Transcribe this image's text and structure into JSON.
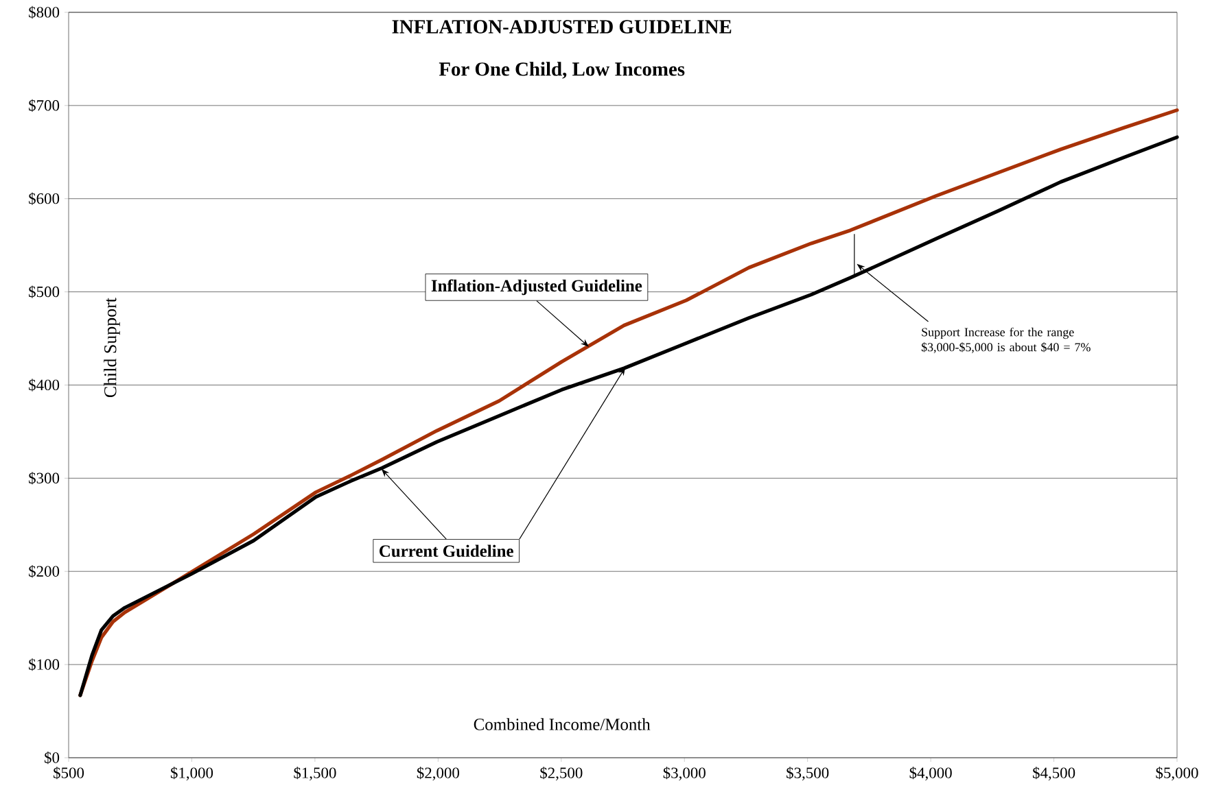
{
  "chart_data": {
    "type": "line",
    "title": "INFLATION-ADJUSTED GUIDELINE",
    "subtitle": "For One Child,  Low Incomes",
    "xlabel": "Combined Income/Month",
    "ylabel": "Child Support",
    "xlim": [
      500,
      5000
    ],
    "ylim": [
      0,
      800
    ],
    "xticks": [
      {
        "value": 500,
        "label": "$500"
      },
      {
        "value": 1000,
        "label": "$1,000"
      },
      {
        "value": 1500,
        "label": "$1,500"
      },
      {
        "value": 2000,
        "label": "$2,000"
      },
      {
        "value": 2500,
        "label": "$2,500"
      },
      {
        "value": 3000,
        "label": "$3,000"
      },
      {
        "value": 3500,
        "label": "$3,500"
      },
      {
        "value": 4000,
        "label": "$4,000"
      },
      {
        "value": 4500,
        "label": "$4,500"
      },
      {
        "value": 5000,
        "label": "$5,000"
      }
    ],
    "yticks": [
      {
        "value": 0,
        "label": "$0"
      },
      {
        "value": 100,
        "label": "$100"
      },
      {
        "value": 200,
        "label": "$200"
      },
      {
        "value": 300,
        "label": "$300"
      },
      {
        "value": 400,
        "label": "$400"
      },
      {
        "value": 500,
        "label": "$500"
      },
      {
        "value": 600,
        "label": "$600"
      },
      {
        "value": 700,
        "label": "$700"
      },
      {
        "value": 800,
        "label": "$800"
      }
    ],
    "grid": "y",
    "legend": false,
    "marker": "none",
    "line_style": "solid",
    "x": [
      547,
      595,
      633,
      680,
      728,
      997,
      1251,
      1504,
      1646,
      1773,
      1995,
      2248,
      2502,
      2755,
      3008,
      3262,
      3515,
      3673,
      4022,
      4275,
      4528,
      4782,
      5000
    ],
    "series": [
      {
        "name": "Inflation-Adjusted Guideline",
        "color": "#a83208",
        "values": [
          67,
          104,
          129,
          146,
          156,
          199,
          240,
          285,
          303,
          320,
          351,
          383,
          425,
          464,
          491,
          526,
          552,
          566,
          603,
          628,
          653,
          676,
          695
        ]
      },
      {
        "name": "Current Guideline",
        "color": "#000000",
        "values": [
          67,
          110,
          137,
          152,
          161,
          197,
          233,
          280,
          297,
          311,
          339,
          367,
          395,
          418,
          445,
          472,
          497,
          515,
          557,
          587,
          618,
          644,
          666
        ]
      }
    ],
    "annotations": [
      "Support Increase for the range $3,000-$5,000 is about  $40 = 7%"
    ]
  }
}
